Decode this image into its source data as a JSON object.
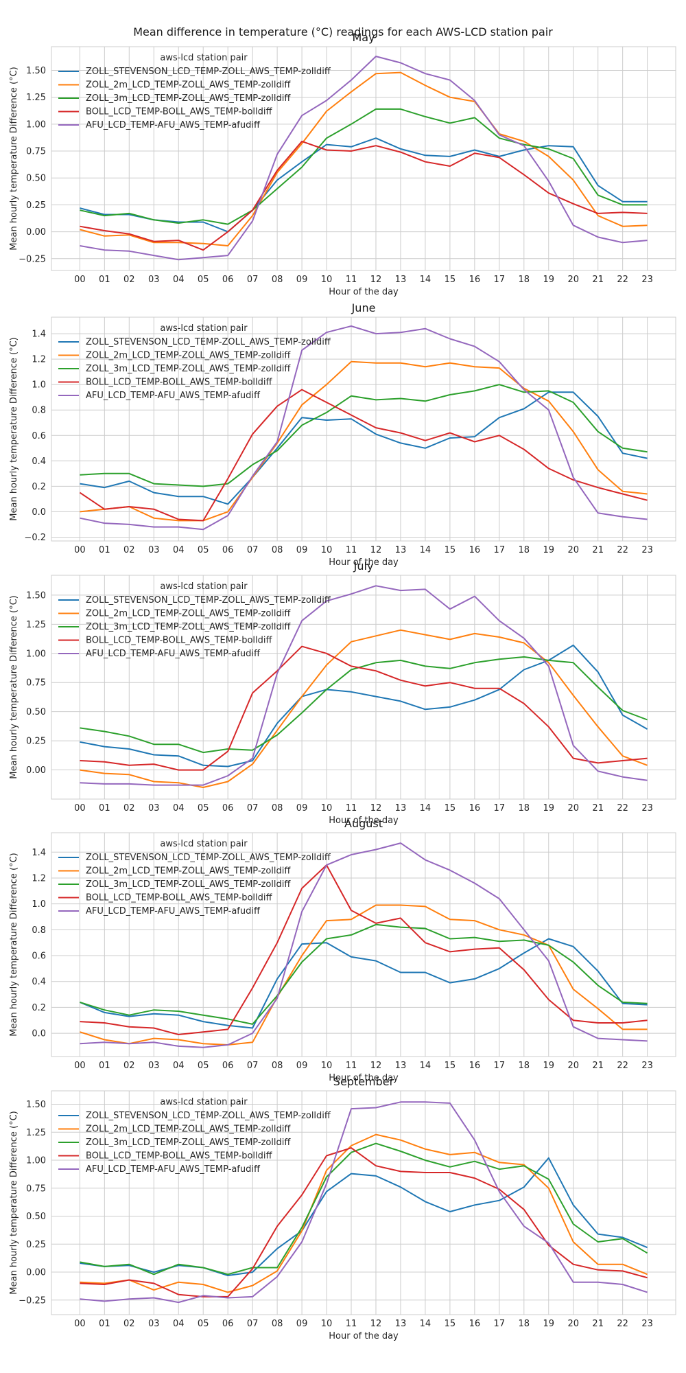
{
  "figure": {
    "suptitle": "Mean difference in temperature (°C) readings for each AWS-LCD station pair"
  },
  "colors": [
    "#1f77b4",
    "#ff7f0e",
    "#2ca02c",
    "#d62728",
    "#9467bd"
  ],
  "chart_data": [
    {
      "type": "line",
      "title": "May",
      "xlabel": "Hour of the day",
      "ylabel": "Mean hourly temperature Difference (°C)",
      "legend_title": "aws-lcd station pair",
      "legend_position": "upper-left",
      "grid": true,
      "x": [
        "00",
        "01",
        "02",
        "03",
        "04",
        "05",
        "06",
        "07",
        "08",
        "09",
        "10",
        "11",
        "12",
        "13",
        "14",
        "15",
        "16",
        "17",
        "18",
        "19",
        "20",
        "21",
        "22",
        "23"
      ],
      "ylim": [
        -0.36,
        1.72
      ],
      "yticks": [
        -0.25,
        0.0,
        0.25,
        0.5,
        0.75,
        1.0,
        1.25,
        1.5
      ],
      "ytick_labels": [
        "−0.25",
        "0.00",
        "0.25",
        "0.50",
        "0.75",
        "1.00",
        "1.25",
        "1.50"
      ],
      "series": [
        {
          "name": "ZOLL_STEVENSON_LCD_TEMP-ZOLL_AWS_TEMP-zolldiff",
          "values": [
            0.22,
            0.16,
            0.16,
            0.11,
            0.09,
            0.09,
            0.0,
            0.2,
            0.48,
            0.65,
            0.81,
            0.79,
            0.87,
            0.77,
            0.71,
            0.7,
            0.76,
            0.7,
            0.76,
            0.8,
            0.79,
            0.43,
            0.28,
            0.28
          ]
        },
        {
          "name": "ZOLL_2m_LCD_TEMP-ZOLL_AWS_TEMP-zolldiff",
          "values": [
            0.02,
            -0.04,
            -0.03,
            -0.1,
            -0.1,
            -0.11,
            -0.13,
            0.15,
            0.55,
            0.82,
            1.12,
            1.3,
            1.47,
            1.48,
            1.36,
            1.25,
            1.21,
            0.91,
            0.84,
            0.7,
            0.48,
            0.15,
            0.05,
            0.06
          ]
        },
        {
          "name": "ZOLL_3m_LCD_TEMP-ZOLL_AWS_TEMP-zolldiff",
          "values": [
            0.2,
            0.15,
            0.17,
            0.11,
            0.08,
            0.11,
            0.07,
            0.2,
            0.4,
            0.6,
            0.87,
            1.0,
            1.14,
            1.14,
            1.07,
            1.01,
            1.06,
            0.87,
            0.81,
            0.77,
            0.68,
            0.34,
            0.25,
            0.25
          ]
        },
        {
          "name": "BOLL_LCD_TEMP-BOLL_AWS_TEMP-bolldiff",
          "values": [
            0.05,
            0.01,
            -0.02,
            -0.09,
            -0.08,
            -0.17,
            0.0,
            0.2,
            0.57,
            0.84,
            0.76,
            0.75,
            0.8,
            0.74,
            0.65,
            0.61,
            0.73,
            0.69,
            0.53,
            0.36,
            0.26,
            0.17,
            0.18,
            0.17
          ]
        },
        {
          "name": "AFU_LCD_TEMP-AFU_AWS_TEMP-afudiff",
          "values": [
            -0.13,
            -0.17,
            -0.18,
            -0.22,
            -0.26,
            -0.24,
            -0.22,
            0.1,
            0.72,
            1.08,
            1.22,
            1.41,
            1.63,
            1.57,
            1.47,
            1.41,
            1.22,
            0.9,
            0.8,
            0.47,
            0.06,
            -0.05,
            -0.1,
            -0.08
          ]
        }
      ]
    },
    {
      "type": "line",
      "title": "June",
      "xlabel": "Hour of the day",
      "ylabel": "Mean hourly temperature Difference (°C)",
      "legend_title": "aws-lcd station pair",
      "legend_position": "upper-left",
      "grid": true,
      "x": [
        "00",
        "01",
        "02",
        "03",
        "04",
        "05",
        "06",
        "07",
        "08",
        "09",
        "10",
        "11",
        "12",
        "13",
        "14",
        "15",
        "16",
        "17",
        "18",
        "19",
        "20",
        "21",
        "22",
        "23"
      ],
      "ylim": [
        -0.23,
        1.53
      ],
      "yticks": [
        -0.2,
        0.0,
        0.2,
        0.4,
        0.6,
        0.8,
        1.0,
        1.2,
        1.4
      ],
      "ytick_labels": [
        "−0.2",
        "0.0",
        "0.2",
        "0.4",
        "0.6",
        "0.8",
        "1.0",
        "1.2",
        "1.4"
      ],
      "series": [
        {
          "name": "ZOLL_STEVENSON_LCD_TEMP-ZOLL_AWS_TEMP-zolldiff",
          "values": [
            0.22,
            0.19,
            0.24,
            0.15,
            0.12,
            0.12,
            0.06,
            0.27,
            0.5,
            0.74,
            0.72,
            0.73,
            0.61,
            0.54,
            0.5,
            0.58,
            0.59,
            0.74,
            0.81,
            0.94,
            0.94,
            0.75,
            0.46,
            0.42
          ]
        },
        {
          "name": "ZOLL_2m_LCD_TEMP-ZOLL_AWS_TEMP-zolldiff",
          "values": [
            0.0,
            0.02,
            0.04,
            -0.05,
            -0.07,
            -0.07,
            0.0,
            0.27,
            0.54,
            0.84,
            1.0,
            1.18,
            1.17,
            1.17,
            1.14,
            1.17,
            1.14,
            1.13,
            0.97,
            0.87,
            0.63,
            0.33,
            0.16,
            0.14
          ]
        },
        {
          "name": "ZOLL_3m_LCD_TEMP-ZOLL_AWS_TEMP-zolldiff",
          "values": [
            0.29,
            0.3,
            0.3,
            0.22,
            0.21,
            0.2,
            0.22,
            0.37,
            0.48,
            0.68,
            0.78,
            0.91,
            0.88,
            0.89,
            0.87,
            0.92,
            0.95,
            1.0,
            0.94,
            0.95,
            0.86,
            0.63,
            0.5,
            0.47
          ]
        },
        {
          "name": "BOLL_LCD_TEMP-BOLL_AWS_TEMP-bolldiff",
          "values": [
            0.15,
            0.02,
            0.04,
            0.02,
            -0.06,
            -0.07,
            0.26,
            0.61,
            0.83,
            0.96,
            0.86,
            0.76,
            0.66,
            0.62,
            0.56,
            0.62,
            0.55,
            0.6,
            0.49,
            0.34,
            0.25,
            0.19,
            0.14,
            0.09
          ]
        },
        {
          "name": "AFU_LCD_TEMP-AFU_AWS_TEMP-afudiff",
          "values": [
            -0.05,
            -0.09,
            -0.1,
            -0.12,
            -0.12,
            -0.14,
            -0.03,
            0.28,
            0.55,
            1.27,
            1.41,
            1.46,
            1.4,
            1.41,
            1.44,
            1.36,
            1.3,
            1.18,
            0.96,
            0.8,
            0.27,
            -0.01,
            -0.04,
            -0.06
          ]
        }
      ]
    },
    {
      "type": "line",
      "title": "July",
      "xlabel": "Hour of the day",
      "ylabel": "Mean hourly temperature Difference (°C)",
      "legend_title": "aws-lcd station pair",
      "legend_position": "upper-left",
      "grid": true,
      "x": [
        "00",
        "01",
        "02",
        "03",
        "04",
        "05",
        "06",
        "07",
        "08",
        "09",
        "10",
        "11",
        "12",
        "13",
        "14",
        "15",
        "16",
        "17",
        "18",
        "19",
        "20",
        "21",
        "22",
        "23"
      ],
      "ylim": [
        -0.25,
        1.67
      ],
      "yticks": [
        0.0,
        0.25,
        0.5,
        0.75,
        1.0,
        1.25,
        1.5
      ],
      "ytick_labels": [
        "0.00",
        "0.25",
        "0.50",
        "0.75",
        "1.00",
        "1.25",
        "1.50"
      ],
      "series": [
        {
          "name": "ZOLL_STEVENSON_LCD_TEMP-ZOLL_AWS_TEMP-zolldiff",
          "values": [
            0.24,
            0.2,
            0.18,
            0.13,
            0.12,
            0.04,
            0.03,
            0.08,
            0.4,
            0.63,
            0.69,
            0.67,
            0.63,
            0.59,
            0.52,
            0.54,
            0.6,
            0.69,
            0.86,
            0.94,
            1.07,
            0.84,
            0.47,
            0.35
          ]
        },
        {
          "name": "ZOLL_2m_LCD_TEMP-ZOLL_AWS_TEMP-zolldiff",
          "values": [
            0.0,
            -0.03,
            -0.04,
            -0.1,
            -0.11,
            -0.15,
            -0.1,
            0.05,
            0.34,
            0.63,
            0.9,
            1.1,
            1.15,
            1.2,
            1.16,
            1.12,
            1.17,
            1.14,
            1.09,
            0.92,
            0.64,
            0.37,
            0.12,
            0.04
          ]
        },
        {
          "name": "ZOLL_3m_LCD_TEMP-ZOLL_AWS_TEMP-zolldiff",
          "values": [
            0.36,
            0.33,
            0.29,
            0.22,
            0.22,
            0.15,
            0.18,
            0.17,
            0.3,
            0.49,
            0.69,
            0.86,
            0.92,
            0.94,
            0.89,
            0.87,
            0.92,
            0.95,
            0.97,
            0.94,
            0.92,
            0.71,
            0.51,
            0.43
          ]
        },
        {
          "name": "BOLL_LCD_TEMP-BOLL_AWS_TEMP-bolldiff",
          "values": [
            0.08,
            0.07,
            0.04,
            0.05,
            0.0,
            0.0,
            0.16,
            0.66,
            0.85,
            1.06,
            1.0,
            0.89,
            0.85,
            0.77,
            0.72,
            0.75,
            0.7,
            0.7,
            0.57,
            0.37,
            0.1,
            0.06,
            0.08,
            0.1
          ]
        },
        {
          "name": "AFU_LCD_TEMP-AFU_AWS_TEMP-afudiff",
          "values": [
            -0.11,
            -0.12,
            -0.12,
            -0.13,
            -0.13,
            -0.13,
            -0.05,
            0.1,
            0.83,
            1.28,
            1.45,
            1.51,
            1.58,
            1.54,
            1.55,
            1.38,
            1.49,
            1.28,
            1.13,
            0.89,
            0.21,
            -0.01,
            -0.06,
            -0.09
          ]
        }
      ]
    },
    {
      "type": "line",
      "title": "August",
      "xlabel": "Hour of the day",
      "ylabel": "Mean hourly temperature Difference (°C)",
      "legend_title": "aws-lcd station pair",
      "legend_position": "upper-left",
      "grid": true,
      "x": [
        "00",
        "01",
        "02",
        "03",
        "04",
        "05",
        "06",
        "07",
        "08",
        "09",
        "10",
        "11",
        "12",
        "13",
        "14",
        "15",
        "16",
        "17",
        "18",
        "19",
        "20",
        "21",
        "22",
        "23"
      ],
      "ylim": [
        -0.18,
        1.55
      ],
      "yticks": [
        0.0,
        0.2,
        0.4,
        0.6,
        0.8,
        1.0,
        1.2,
        1.4
      ],
      "ytick_labels": [
        "0.0",
        "0.2",
        "0.4",
        "0.6",
        "0.8",
        "1.0",
        "1.2",
        "1.4"
      ],
      "series": [
        {
          "name": "ZOLL_STEVENSON_LCD_TEMP-ZOLL_AWS_TEMP-zolldiff",
          "values": [
            0.24,
            0.16,
            0.13,
            0.15,
            0.14,
            0.09,
            0.06,
            0.04,
            0.42,
            0.69,
            0.7,
            0.59,
            0.56,
            0.47,
            0.47,
            0.39,
            0.42,
            0.5,
            0.62,
            0.73,
            0.67,
            0.48,
            0.23,
            0.22
          ]
        },
        {
          "name": "ZOLL_2m_LCD_TEMP-ZOLL_AWS_TEMP-zolldiff",
          "values": [
            0.01,
            -0.05,
            -0.08,
            -0.04,
            -0.05,
            -0.08,
            -0.09,
            -0.07,
            0.28,
            0.6,
            0.87,
            0.88,
            0.99,
            0.99,
            0.98,
            0.88,
            0.87,
            0.8,
            0.76,
            0.68,
            0.34,
            0.19,
            0.03,
            0.03
          ]
        },
        {
          "name": "ZOLL_3m_LCD_TEMP-ZOLL_AWS_TEMP-zolldiff",
          "values": [
            0.24,
            0.18,
            0.14,
            0.18,
            0.17,
            0.14,
            0.11,
            0.07,
            0.29,
            0.55,
            0.73,
            0.76,
            0.84,
            0.82,
            0.81,
            0.73,
            0.74,
            0.71,
            0.72,
            0.68,
            0.55,
            0.37,
            0.24,
            0.23
          ]
        },
        {
          "name": "BOLL_LCD_TEMP-BOLL_AWS_TEMP-bolldiff",
          "values": [
            0.09,
            0.08,
            0.05,
            0.04,
            -0.01,
            0.01,
            0.03,
            0.35,
            0.7,
            1.12,
            1.3,
            0.95,
            0.85,
            0.89,
            0.7,
            0.63,
            0.65,
            0.66,
            0.49,
            0.26,
            0.1,
            0.08,
            0.08,
            0.1
          ]
        },
        {
          "name": "AFU_LCD_TEMP-AFU_AWS_TEMP-afudiff",
          "values": [
            -0.08,
            -0.07,
            -0.08,
            -0.07,
            -0.1,
            -0.11,
            -0.09,
            0.0,
            0.27,
            0.94,
            1.3,
            1.38,
            1.42,
            1.47,
            1.34,
            1.26,
            1.16,
            1.04,
            0.8,
            0.56,
            0.05,
            -0.04,
            -0.05,
            -0.06
          ]
        }
      ]
    },
    {
      "type": "line",
      "title": "September",
      "xlabel": "Hour of the day",
      "ylabel": "Mean hourly temperature Difference (°C)",
      "legend_title": "aws-lcd station pair",
      "legend_position": "upper-left",
      "grid": true,
      "x": [
        "00",
        "01",
        "02",
        "03",
        "04",
        "05",
        "06",
        "07",
        "08",
        "09",
        "10",
        "11",
        "12",
        "13",
        "14",
        "15",
        "16",
        "17",
        "18",
        "19",
        "20",
        "21",
        "22",
        "23"
      ],
      "ylim": [
        -0.38,
        1.62
      ],
      "yticks": [
        -0.25,
        0.0,
        0.25,
        0.5,
        0.75,
        1.0,
        1.25,
        1.5
      ],
      "ytick_labels": [
        "−0.25",
        "0.00",
        "0.25",
        "0.50",
        "0.75",
        "1.00",
        "1.25",
        "1.50"
      ],
      "series": [
        {
          "name": "ZOLL_STEVENSON_LCD_TEMP-ZOLL_AWS_TEMP-zolldiff",
          "values": [
            0.08,
            0.05,
            0.06,
            0.0,
            0.06,
            0.04,
            -0.03,
            0.0,
            0.21,
            0.37,
            0.72,
            0.88,
            0.86,
            0.76,
            0.63,
            0.54,
            0.6,
            0.64,
            0.76,
            1.02,
            0.6,
            0.34,
            0.31,
            0.22
          ]
        },
        {
          "name": "ZOLL_2m_LCD_TEMP-ZOLL_AWS_TEMP-zolldiff",
          "values": [
            -0.09,
            -0.1,
            -0.07,
            -0.16,
            -0.09,
            -0.11,
            -0.18,
            -0.12,
            0.01,
            0.37,
            0.91,
            1.13,
            1.23,
            1.18,
            1.1,
            1.05,
            1.07,
            0.98,
            0.96,
            0.75,
            0.27,
            0.07,
            0.07,
            -0.02
          ]
        },
        {
          "name": "ZOLL_3m_LCD_TEMP-ZOLL_AWS_TEMP-zolldiff",
          "values": [
            0.09,
            0.05,
            0.07,
            -0.02,
            0.07,
            0.04,
            -0.02,
            0.04,
            0.04,
            0.4,
            0.85,
            1.07,
            1.15,
            1.08,
            1.0,
            0.94,
            0.99,
            0.92,
            0.95,
            0.83,
            0.43,
            0.27,
            0.3,
            0.17
          ]
        },
        {
          "name": "BOLL_LCD_TEMP-BOLL_AWS_TEMP-bolldiff",
          "values": [
            -0.1,
            -0.11,
            -0.07,
            -0.1,
            -0.2,
            -0.22,
            -0.22,
            0.03,
            0.41,
            0.69,
            1.04,
            1.11,
            0.95,
            0.9,
            0.89,
            0.89,
            0.84,
            0.74,
            0.56,
            0.24,
            0.07,
            0.02,
            0.01,
            -0.05
          ]
        },
        {
          "name": "AFU_LCD_TEMP-AFU_AWS_TEMP-afudiff",
          "values": [
            -0.24,
            -0.26,
            -0.24,
            -0.23,
            -0.27,
            -0.21,
            -0.23,
            -0.22,
            -0.04,
            0.27,
            0.79,
            1.46,
            1.47,
            1.52,
            1.52,
            1.51,
            1.18,
            0.72,
            0.41,
            0.26,
            -0.09,
            -0.09,
            -0.11,
            -0.18
          ]
        }
      ]
    }
  ]
}
